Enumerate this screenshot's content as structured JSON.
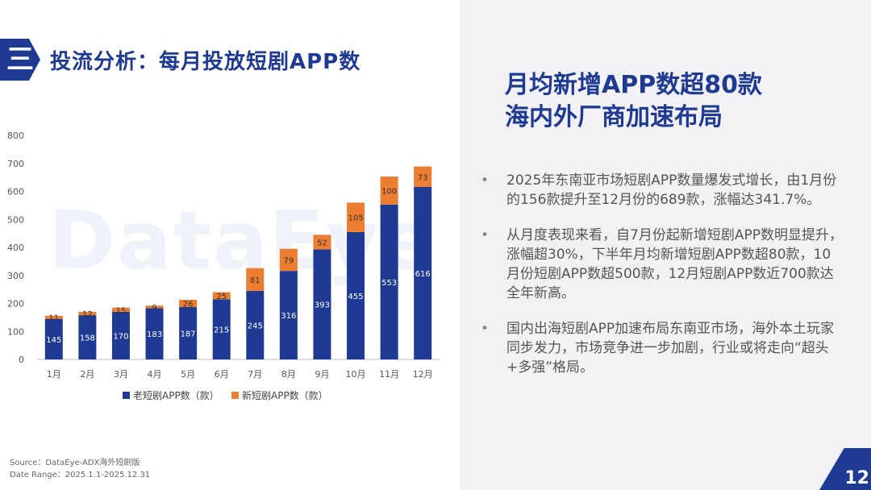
{
  "header": {
    "badge": "三",
    "title": "投流分析：每月投放短剧APP数"
  },
  "headline": {
    "line1": "月均新增APP数超80款",
    "line2": "海内外厂商加速布局"
  },
  "bullets": [
    "2025年东南亚市场短剧APP数量爆发式增长，由1月份的156款提升至12月份的689款，涨幅达341.7%。",
    "从月度表现来看，自7月份起新增短剧APP数明显提升，涨幅超30%，下半年月均新增短剧APP数超80款，10月份短剧APP数超500款，12月短剧APP数近700款达全年新高。",
    "国内出海短剧APP加速布局东南亚市场，海外本土玩家同步发力，市场竞争进一步加剧，行业或将走向“超头+多强”格局。"
  ],
  "watermark": "DataEye",
  "source": {
    "line1": "Source：DataEye-ADX海外短剧版",
    "line2": "Date Range：2025.1.1-2025.12.31"
  },
  "page_number": "12",
  "colors": {
    "old": "#1f3a93",
    "new": "#ed7d31"
  },
  "chart_data": {
    "type": "bar",
    "stacked": true,
    "categories": [
      "1月",
      "2月",
      "3月",
      "4月",
      "5月",
      "6月",
      "7月",
      "8月",
      "9月",
      "10月",
      "11月",
      "12月"
    ],
    "series": [
      {
        "name": "老短剧APP数（款）",
        "values": [
          145,
          158,
          170,
          183,
          187,
          215,
          245,
          316,
          393,
          455,
          553,
          616
        ]
      },
      {
        "name": "新短剧APP数（款）",
        "values": [
          11,
          12,
          15,
          9,
          26,
          25,
          81,
          79,
          52,
          105,
          100,
          73
        ]
      }
    ],
    "ylim": [
      0,
      800
    ],
    "yticks": [
      0,
      100,
      200,
      300,
      400,
      500,
      600,
      700,
      800
    ],
    "legend": "bottom"
  }
}
